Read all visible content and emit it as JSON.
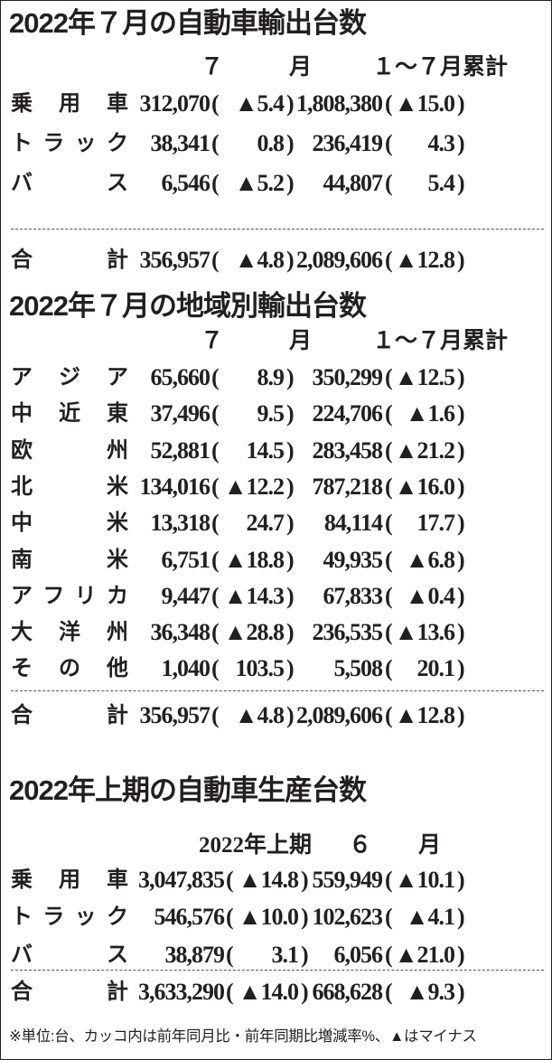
{
  "sections": [
    {
      "title": "2022年７月の自動車輸出台数",
      "headers": [
        "７",
        "月",
        "１～７月累計"
      ],
      "rows": [
        {
          "label": "乗用車",
          "v1": "312,070",
          "p1": "▲5.4",
          "v2": "1,808,380",
          "p2": "▲15.0"
        },
        {
          "label": "トラック",
          "v1": "38,341",
          "p1": "0.8",
          "v2": "236,419",
          "p2": "4.3"
        },
        {
          "label": "バス",
          "v1": "6,546",
          "p1": "▲5.2",
          "v2": "44,807",
          "p2": "5.4"
        }
      ],
      "total": {
        "label": "合計",
        "v1": "356,957",
        "p1": "▲4.8",
        "v2": "2,089,606",
        "p2": "▲12.8"
      }
    },
    {
      "title": "2022年７月の地域別輸出台数",
      "headers": [
        "７",
        "月",
        "１～７月累計"
      ],
      "rows": [
        {
          "label": "アジア",
          "v1": "65,660",
          "p1": "8.9",
          "v2": "350,299",
          "p2": "▲12.5"
        },
        {
          "label": "中近東",
          "v1": "37,496",
          "p1": "9.5",
          "v2": "224,706",
          "p2": "▲1.6"
        },
        {
          "label": "欧州",
          "v1": "52,881",
          "p1": "14.5",
          "v2": "283,458",
          "p2": "▲21.2"
        },
        {
          "label": "北米",
          "v1": "134,016",
          "p1": "▲12.2",
          "v2": "787,218",
          "p2": "▲16.0"
        },
        {
          "label": "中米",
          "v1": "13,318",
          "p1": "24.7",
          "v2": "84,114",
          "p2": "17.7"
        },
        {
          "label": "南米",
          "v1": "6,751",
          "p1": "▲18.8",
          "v2": "49,935",
          "p2": "▲6.8"
        },
        {
          "label": "アフリカ",
          "v1": "9,447",
          "p1": "▲14.3",
          "v2": "67,833",
          "p2": "▲0.4"
        },
        {
          "label": "大洋州",
          "v1": "36,348",
          "p1": "▲28.8",
          "v2": "236,535",
          "p2": "▲13.6"
        },
        {
          "label": "その他",
          "v1": "1,040",
          "p1": "103.5",
          "v2": "5,508",
          "p2": "20.1"
        }
      ],
      "total": {
        "label": "合計",
        "v1": "356,957",
        "p1": "▲4.8",
        "v2": "2,089,606",
        "p2": "▲12.8"
      }
    },
    {
      "title": "2022年上期の自動車生産台数",
      "headers": [
        "2022年上期",
        "６",
        "月"
      ],
      "rows": [
        {
          "label": "乗用車",
          "v1": "3,047,835",
          "p1": "▲14.8",
          "v2": "559,949",
          "p2": "▲10.1"
        },
        {
          "label": "トラック",
          "v1": "546,576",
          "p1": "▲10.0",
          "v2": "102,623",
          "p2": "▲4.1"
        },
        {
          "label": "バス",
          "v1": "38,879",
          "p1": "3.1",
          "v2": "6,056",
          "p2": "▲21.0"
        }
      ],
      "total": {
        "label": "合計",
        "v1": "3,633,290",
        "p1": "▲14.0",
        "v2": "668,628",
        "p2": "▲9.3"
      }
    }
  ],
  "footnote": "※単位:台、カッコ内は前年同月比・前年同期比増減率%、▲はマイナス"
}
